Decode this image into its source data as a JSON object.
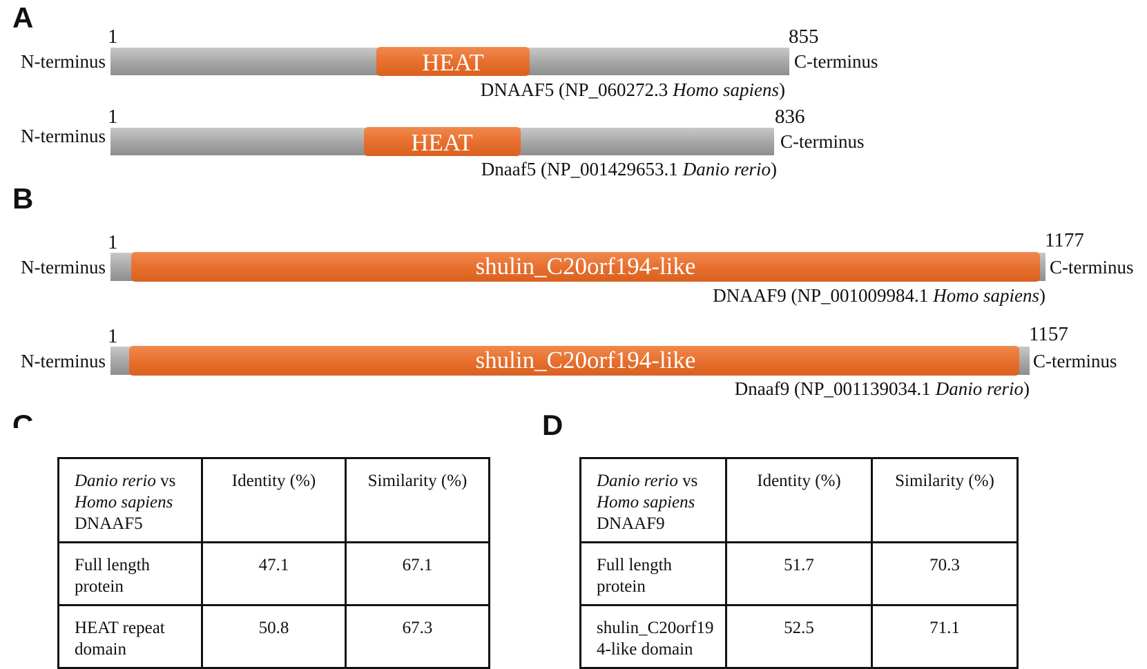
{
  "panels": {
    "a": "A",
    "b": "B",
    "c": "C",
    "d": "D"
  },
  "proteins": [
    {
      "start": "1",
      "end": "855",
      "n_label": "N-terminus",
      "c_label": "C-terminus",
      "domain": "HEAT",
      "caption": {
        "name": "DNAAF5 (NP_060272.3",
        "species": "Homo sapiens",
        "close": ")"
      }
    },
    {
      "start": "1",
      "end": "836",
      "n_label": "N-terminus",
      "c_label": "C-terminus",
      "domain": "HEAT",
      "caption": {
        "name": "Dnaaf5 (NP_001429653.1",
        "species": "Danio rerio",
        "close": ")"
      }
    },
    {
      "start": "1",
      "end": "1177",
      "n_label": "N-terminus",
      "c_label": "C-terminus",
      "domain": "shulin_C20orf194-like",
      "caption": {
        "name": "DNAAF9 (NP_001009984.1",
        "species": "Homo sapiens",
        "close": ")"
      }
    },
    {
      "start": "1",
      "end": "1157",
      "n_label": "N-terminus",
      "c_label": "C-terminus",
      "domain": "shulin_C20orf194-like",
      "caption": {
        "name": "Dnaaf9 (NP_001139034.1",
        "species": "Danio rerio",
        "close": ")"
      }
    }
  ],
  "tables": [
    {
      "header": {
        "species1": "Danio rerio",
        "vs": "vs",
        "species2": "Homo sapiens",
        "protein": "DNAAF5",
        "identity": "Identity (%)",
        "similarity": "Similarity (%)"
      },
      "rows": [
        [
          "Full length protein",
          47.1,
          67.1
        ],
        [
          "HEAT repeat domain",
          50.8,
          67.3
        ]
      ]
    },
    {
      "header": {
        "species1": "Danio rerio",
        "vs": "vs",
        "species2": "Homo sapiens",
        "protein": "DNAAF9",
        "identity": "Identity (%)",
        "similarity": "Similarity (%)"
      },
      "rows": [
        [
          "Full length protein",
          51.7,
          70.3
        ],
        [
          "shulin_C20orf194-like domain",
          52.5,
          71.1
        ]
      ]
    }
  ]
}
